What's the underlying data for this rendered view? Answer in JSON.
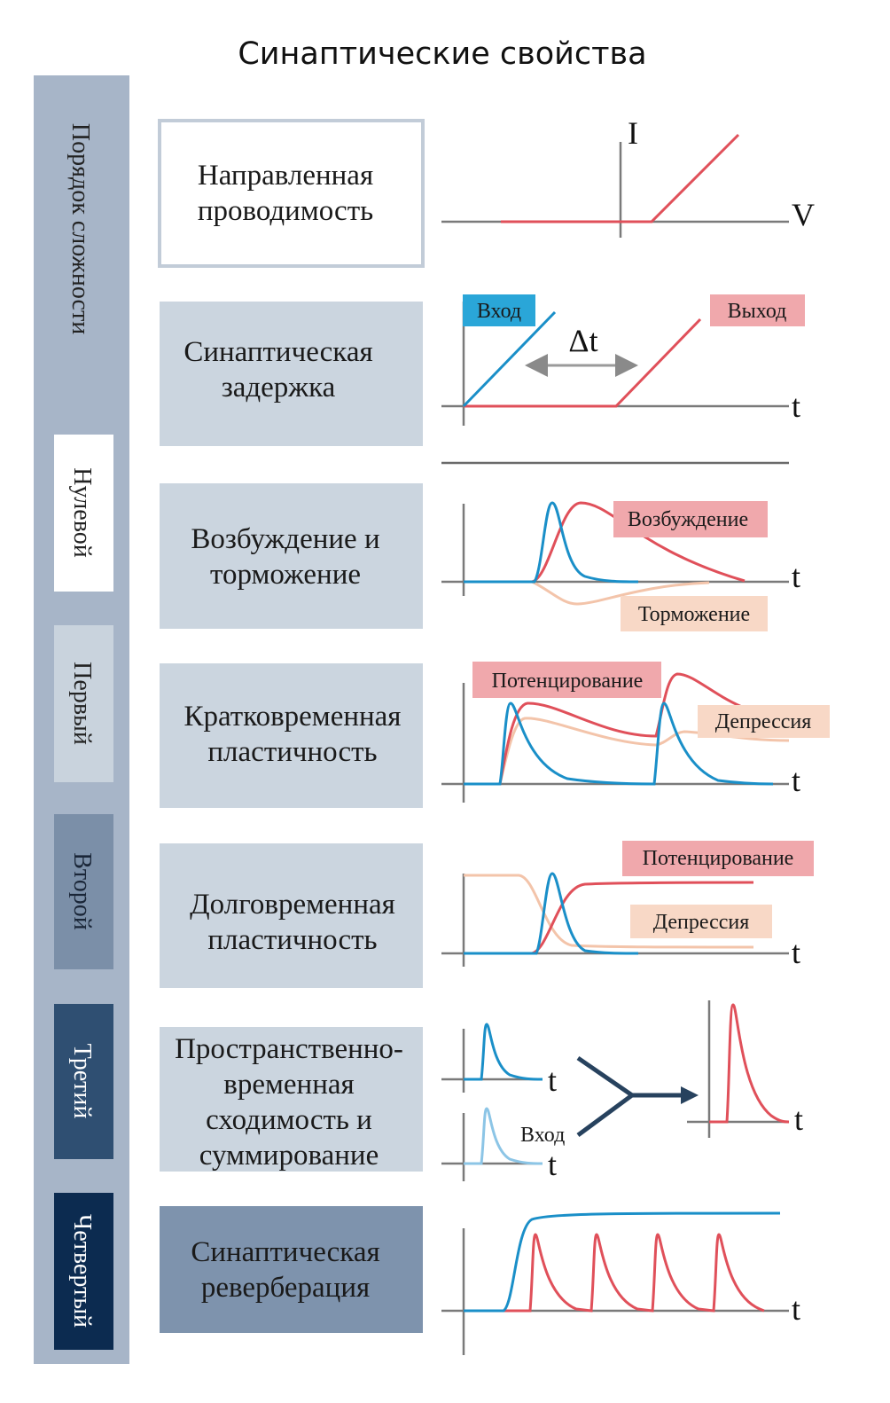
{
  "title": "Синаптические свойства",
  "complexity_axis": {
    "label": "Порядок сложности",
    "tiers": [
      {
        "label": "Нулевой",
        "color": "#ffffff",
        "text_color": "#222222"
      },
      {
        "label": "Первый",
        "color": "#c9d3dd",
        "text_color": "#222222"
      },
      {
        "label": "Второй",
        "color": "#7b8fa8",
        "text_color": "#1a2638"
      },
      {
        "label": "Третий",
        "color": "#2f4f72",
        "text_color": "#ffffff"
      },
      {
        "label": "Четвертый",
        "color": "#0c2b50",
        "text_color": "#ffffff"
      }
    ]
  },
  "properties": [
    {
      "lines": [
        "Направленная",
        "проводимость"
      ]
    },
    {
      "lines": [
        "Синаптическая",
        "задержка"
      ]
    },
    {
      "lines": [
        "Возбуждение и",
        "торможение"
      ]
    },
    {
      "lines": [
        "Кратковременная",
        "пластичность"
      ]
    },
    {
      "lines": [
        "Долговременная",
        "пластичность"
      ]
    },
    {
      "lines": [
        "Пространственно-",
        "временная",
        "сходимость и",
        "суммирование"
      ]
    },
    {
      "lines": [
        "Синаптическая",
        "реверберация"
      ]
    }
  ],
  "graphs": {
    "iv": {
      "y_label": "I",
      "x_label": "V"
    },
    "delay": {
      "input": "Вход",
      "output": "Выход",
      "delta": "Δt",
      "x_label": "t"
    },
    "exc_inh": {
      "excitation": "Возбуждение",
      "inhibition": "Торможение",
      "x_label": "t"
    },
    "short_term": {
      "potentiation": "Потенцирование",
      "depression": "Депрессия",
      "x_label": "t"
    },
    "long_term": {
      "potentiation": "Потенцирование",
      "depression": "Депрессия",
      "x_label": "t"
    },
    "summation": {
      "input": "Вход",
      "x_label": "t"
    },
    "reverberation": {
      "x_label": "t"
    }
  },
  "colors": {
    "red": "#e0505a",
    "blue": "#1a8fc8",
    "peach": "#f3c4aa",
    "pink_label": "#f0a8ac",
    "peach_label": "#f8d8c6",
    "blue_label": "#2aa6d8"
  }
}
